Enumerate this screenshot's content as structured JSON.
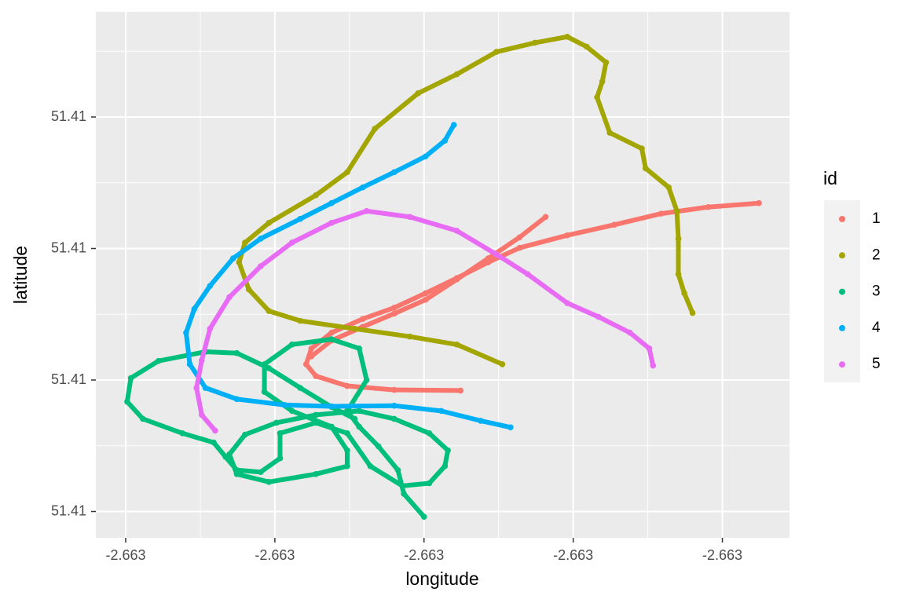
{
  "chart_data": {
    "type": "scatter",
    "x_label": "longitude",
    "y_label": "latitude",
    "legend_title": "id",
    "xlim": [
      -2.66344,
      -2.66251
    ],
    "ylim": [
      51.40936,
      51.41016
    ],
    "xticks": [
      {
        "value": -2.6634,
        "label": "-2.663"
      },
      {
        "value": -2.6632,
        "label": "-2.663"
      },
      {
        "value": -2.663,
        "label": "-2.663"
      },
      {
        "value": -2.6628,
        "label": "-2.663"
      },
      {
        "value": -2.6626,
        "label": "-2.663"
      }
    ],
    "yticks": [
      {
        "value": 51.4094,
        "label": "51.41"
      },
      {
        "value": 51.4096,
        "label": "51.41"
      },
      {
        "value": 51.4098,
        "label": "51.41"
      },
      {
        "value": 51.41,
        "label": "51.41"
      }
    ],
    "grid": true,
    "legend_position": "right",
    "series": [
      {
        "name": "1",
        "color": "#F8766D",
        "x": [
          -2.662551,
          -2.662619,
          -2.662682,
          -2.662745,
          -2.662808,
          -2.662872,
          -2.662914,
          -2.662956,
          -2.662998,
          -2.66304,
          -2.663082,
          -2.663124,
          -2.663151,
          -2.663158,
          -2.663145,
          -2.663103,
          -2.66304,
          -2.662951,
          null,
          -2.662837,
          -2.662872,
          -2.662914,
          -2.662956,
          -2.662998,
          -2.66304,
          -2.663082,
          -2.663124,
          -2.663151
        ],
        "y": [
          51.409869,
          51.409863,
          51.409853,
          51.409836,
          51.40982,
          51.409801,
          51.409779,
          51.409755,
          51.409732,
          51.40971,
          51.409693,
          51.409672,
          51.409648,
          51.409624,
          51.409606,
          51.409591,
          51.409585,
          51.409584,
          null,
          51.409848,
          51.409817,
          51.409785,
          51.409753,
          51.409722,
          51.409701,
          51.409681,
          51.40966,
          51.409636
        ]
      },
      {
        "name": "2",
        "color": "#A3A500",
        "x": [
          -2.662895,
          -2.662956,
          -2.663019,
          -2.663093,
          -2.663166,
          -2.663208,
          -2.663235,
          -2.663248,
          -2.66324,
          -2.663208,
          -2.663145,
          -2.663103,
          -2.663066,
          -2.663008,
          -2.662956,
          -2.662903,
          -2.662851,
          -2.662808,
          -2.662782,
          -2.662756,
          -2.662761,
          -2.662768,
          -2.662751,
          -2.662708,
          -2.662703,
          -2.662672,
          -2.662661,
          -2.662659,
          -2.662659,
          -2.662651,
          -2.66264
        ],
        "y": [
          51.409624,
          51.409654,
          51.409666,
          51.409678,
          51.40969,
          51.409705,
          51.409738,
          51.409779,
          51.409809,
          51.409839,
          51.409881,
          51.409916,
          51.409982,
          51.410036,
          51.410065,
          51.410099,
          51.410113,
          51.410122,
          51.410107,
          51.410083,
          51.410054,
          51.41003,
          51.409976,
          51.409952,
          51.409922,
          51.409893,
          51.409857,
          51.409815,
          51.409761,
          51.409732,
          51.409702
        ]
      },
      {
        "name": "3",
        "color": "#00BF7D",
        "x": [
          -2.663,
          -2.663027,
          -2.663035,
          -2.663061,
          -2.663087,
          -2.663103,
          -2.663077,
          -2.663087,
          -2.663124,
          -2.663177,
          -2.663214,
          -2.663214,
          -2.663177,
          -2.663124,
          -2.663103,
          -2.663103,
          -2.663145,
          -2.663208,
          -2.663251,
          -2.663261,
          -2.66324,
          -2.663198,
          -2.663145,
          -2.663087,
          -2.66304,
          -2.662993,
          -2.662968,
          -2.662972,
          -2.662993,
          -2.663029,
          -2.663072,
          -2.663103,
          -2.663145,
          -2.663193,
          -2.663193,
          -2.663219,
          -2.663251,
          -2.663266,
          -2.663282,
          -2.663324,
          -2.663377,
          -2.663398,
          -2.663393,
          -2.663356,
          -2.663293,
          -2.663251,
          -2.663208,
          -2.663166,
          -2.663124,
          -2.663093
        ],
        "y": [
          51.409392,
          51.409427,
          51.409463,
          51.409499,
          51.409529,
          51.409553,
          51.4096,
          51.409648,
          51.409662,
          51.409654,
          51.409624,
          51.409582,
          51.409553,
          51.409529,
          51.409493,
          51.409469,
          51.409457,
          51.409445,
          51.409457,
          51.409487,
          51.409517,
          51.409535,
          51.409547,
          51.409553,
          51.409541,
          51.409519,
          51.409493,
          51.409469,
          51.409443,
          51.409439,
          51.409469,
          51.409519,
          51.409535,
          51.409519,
          51.409481,
          51.40946,
          51.409463,
          51.409483,
          51.409505,
          51.409519,
          51.409541,
          51.409567,
          51.409603,
          51.409629,
          51.409643,
          51.409641,
          51.409618,
          51.409588,
          51.409559,
          51.409541
        ]
      },
      {
        "name": "4",
        "color": "#00B0F6",
        "x": [
          -2.66296,
          -2.662972,
          -2.662998,
          -2.66304,
          -2.663082,
          -2.663124,
          -2.663166,
          -2.663219,
          -2.663256,
          -2.663287,
          -2.663308,
          -2.663319,
          -2.663314,
          -2.663293,
          -2.663251,
          -2.663187,
          -2.663124,
          -2.66304,
          -2.662977,
          -2.662924,
          -2.662884
        ],
        "y": [
          51.409988,
          51.409964,
          51.40994,
          51.409916,
          51.409893,
          51.409869,
          51.409845,
          51.409815,
          51.409785,
          51.409743,
          51.409708,
          51.409672,
          51.409624,
          51.409588,
          51.409571,
          51.409562,
          51.40956,
          51.409561,
          51.409553,
          51.409538,
          51.409528
        ]
      },
      {
        "name": "5",
        "color": "#E76BF3",
        "x": [
          -2.66328,
          -2.663298,
          -2.663305,
          -2.663298,
          -2.663287,
          -2.663261,
          -2.663219,
          -2.663177,
          -2.663124,
          -2.663077,
          -2.663019,
          -2.662956,
          -2.662903,
          -2.662861,
          -2.662808,
          -2.662766,
          -2.662724,
          -2.662698,
          -2.662693
        ],
        "y": [
          51.409523,
          51.409547,
          51.409588,
          51.40963,
          51.409678,
          51.409726,
          51.409773,
          51.409809,
          51.409839,
          51.409857,
          51.409848,
          51.409827,
          51.409791,
          51.409761,
          51.409717,
          51.409696,
          51.409672,
          51.409648,
          51.409622
        ]
      }
    ]
  }
}
